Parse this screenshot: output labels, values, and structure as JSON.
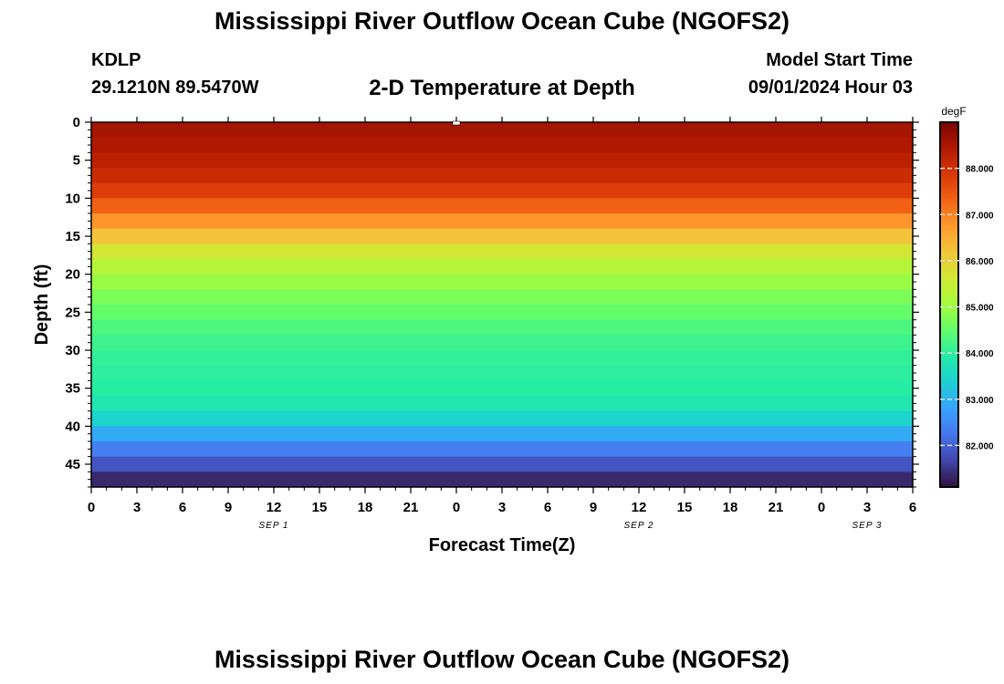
{
  "header": {
    "title": "Mississippi River Outflow Ocean Cube (NGOFS2)",
    "station": "KDLP",
    "coords": "29.1210N  89.5470W",
    "subtitle": "2-D Temperature at Depth",
    "model_start_label": "Model Start Time",
    "model_start_value": "09/01/2024 Hour 03"
  },
  "footer": {
    "title": "Mississippi River Outflow Ocean Cube (NGOFS2)"
  },
  "chart_data": {
    "type": "heatmap",
    "xlabel": "Forecast Time(Z)",
    "ylabel": "Depth (ft)",
    "x_tick_labels": [
      "0",
      "3",
      "6",
      "9",
      "12",
      "15",
      "18",
      "21",
      "0",
      "3",
      "6",
      "9",
      "12",
      "15",
      "18",
      "21",
      "0",
      "3",
      "6"
    ],
    "date_labels": [
      {
        "label": "SEP 1",
        "at_tick": 4
      },
      {
        "label": "SEP 2",
        "at_tick": 12
      },
      {
        "label": "SEP 3",
        "at_tick": 17
      }
    ],
    "y_tick_labels": [
      "0",
      "5",
      "10",
      "15",
      "20",
      "25",
      "30",
      "35",
      "40",
      "45"
    ],
    "y_range": [
      0,
      48
    ],
    "y_inverted": true,
    "colorbar": {
      "unit": "degF",
      "range": [
        81.1,
        89.0
      ],
      "tick_labels": [
        "88.000",
        "87.000",
        "86.000",
        "85.000",
        "84.000",
        "83.000",
        "82.000"
      ],
      "colors": [
        "#30123b",
        "#4145ab",
        "#4675ed",
        "#39a2fc",
        "#1bcfd4",
        "#24eca6",
        "#61fc6c",
        "#a4fc3b",
        "#d1e834",
        "#f3c63a",
        "#fe9b2d",
        "#f36315",
        "#d93806",
        "#b11901",
        "#7a0402"
      ]
    },
    "depth_levels_ft": [
      0,
      2,
      4,
      6,
      8,
      10,
      12,
      14,
      16,
      18,
      20,
      22,
      24,
      26,
      28,
      30,
      32,
      34,
      36,
      38,
      40,
      42,
      44,
      46,
      48
    ],
    "temperature_profile_degF": [
      88.6,
      88.5,
      88.4,
      88.2,
      88.0,
      87.6,
      87.1,
      86.5,
      85.9,
      85.4,
      85.1,
      84.8,
      84.6,
      84.4,
      84.2,
      84.1,
      84.0,
      84.0,
      83.9,
      83.7,
      83.2,
      82.6,
      82.1,
      81.6,
      81.1
    ]
  }
}
